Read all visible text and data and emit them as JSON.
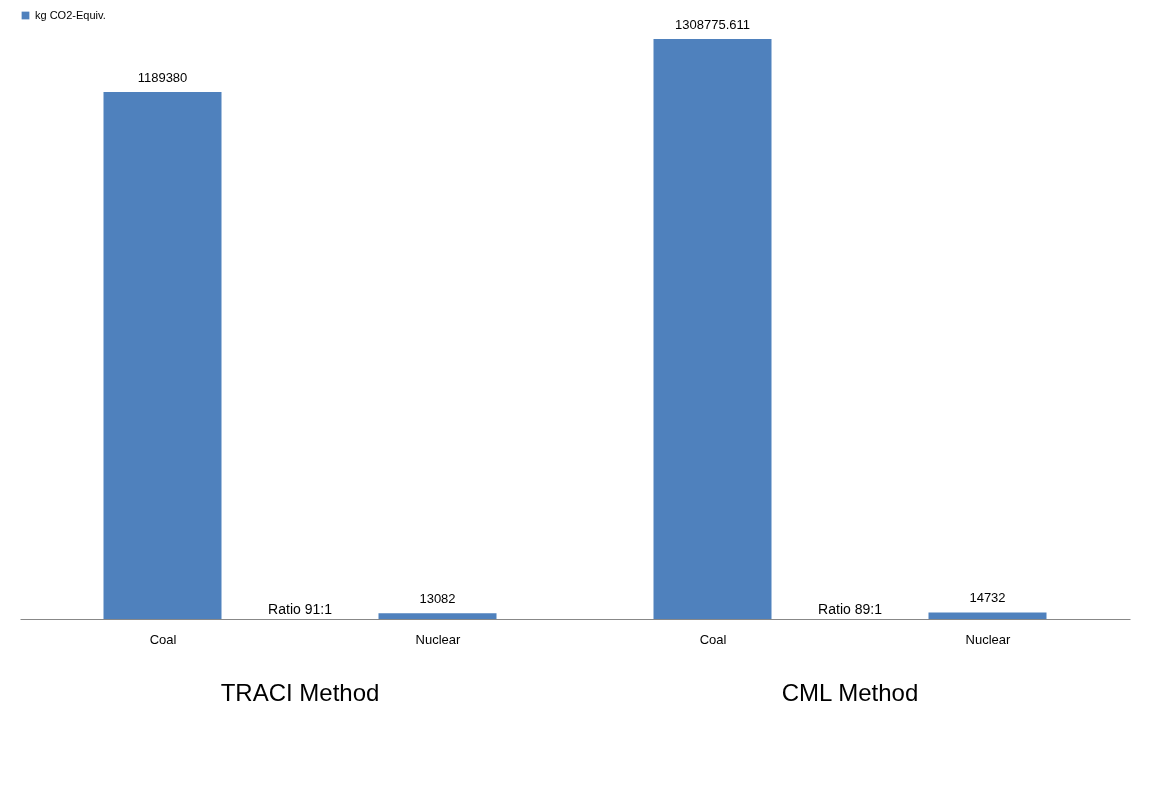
{
  "chart_data": {
    "type": "bar",
    "categories": [
      "Coal",
      "Nuclear",
      "Coal",
      "Nuclear"
    ],
    "series": [
      {
        "name": "kg CO2-Equiv.",
        "color": "#4f81bd",
        "values": [
          1189380,
          13082,
          1308775.611,
          14732
        ]
      }
    ],
    "data_labels": true,
    "legend": "top",
    "grid": false,
    "annotations": [
      "Ratio 91:1",
      "Ratio 89:1",
      "TRACI Method",
      "CML Method"
    ]
  }
}
